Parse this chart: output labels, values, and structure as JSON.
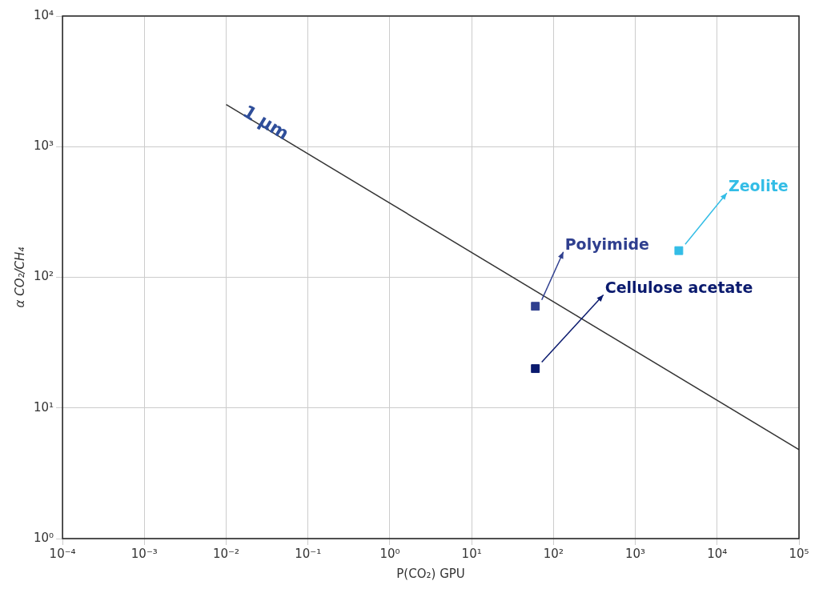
{
  "chart_data": {
    "type": "scatter",
    "xlabel": "P(CO₂) GPU",
    "ylabel": "α CO₂/CH₄",
    "log": "xy",
    "grid": true,
    "legend": false,
    "xlim": [
      0.0001,
      100000
    ],
    "ylim": [
      1,
      10000
    ],
    "xticks": [
      {
        "value": 0.0001,
        "label": "10⁻⁴"
      },
      {
        "value": 0.001,
        "label": "10⁻³"
      },
      {
        "value": 0.01,
        "label": "10⁻²"
      },
      {
        "value": 0.1,
        "label": "10⁻¹"
      },
      {
        "value": 1,
        "label": "10⁰"
      },
      {
        "value": 10,
        "label": "10¹"
      },
      {
        "value": 100,
        "label": "10²"
      },
      {
        "value": 1000,
        "label": "10³"
      },
      {
        "value": 10000,
        "label": "10⁴"
      },
      {
        "value": 100000,
        "label": "10⁵"
      }
    ],
    "yticks": [
      {
        "value": 1,
        "label": "10⁰"
      },
      {
        "value": 10,
        "label": "10¹"
      },
      {
        "value": 100,
        "label": "10²"
      },
      {
        "value": 1000,
        "label": "10³"
      },
      {
        "value": 10000,
        "label": "10⁴"
      }
    ],
    "series": [
      {
        "type": "line",
        "color": "#333333",
        "x": [
          0.01,
          100000
        ],
        "values": [
          2100,
          4.8
        ],
        "marker": "none",
        "line_style": "solid"
      },
      {
        "type": "scatter",
        "name": "Polyimide",
        "color": "#2f3f8f",
        "x": [
          60
        ],
        "values": [
          60
        ],
        "marker": "square"
      },
      {
        "type": "scatter",
        "name": "Cellulose acetate",
        "color": "#0a1a6e",
        "x": [
          60
        ],
        "values": [
          20
        ],
        "marker": "square"
      },
      {
        "type": "scatter",
        "name": "Zeolite",
        "color": "#33bde6",
        "x": [
          3400
        ],
        "values": [
          160
        ],
        "marker": "square"
      }
    ],
    "annotations": [
      {
        "text": "1 μm",
        "x": 0.03,
        "y": 1500
      }
    ]
  }
}
